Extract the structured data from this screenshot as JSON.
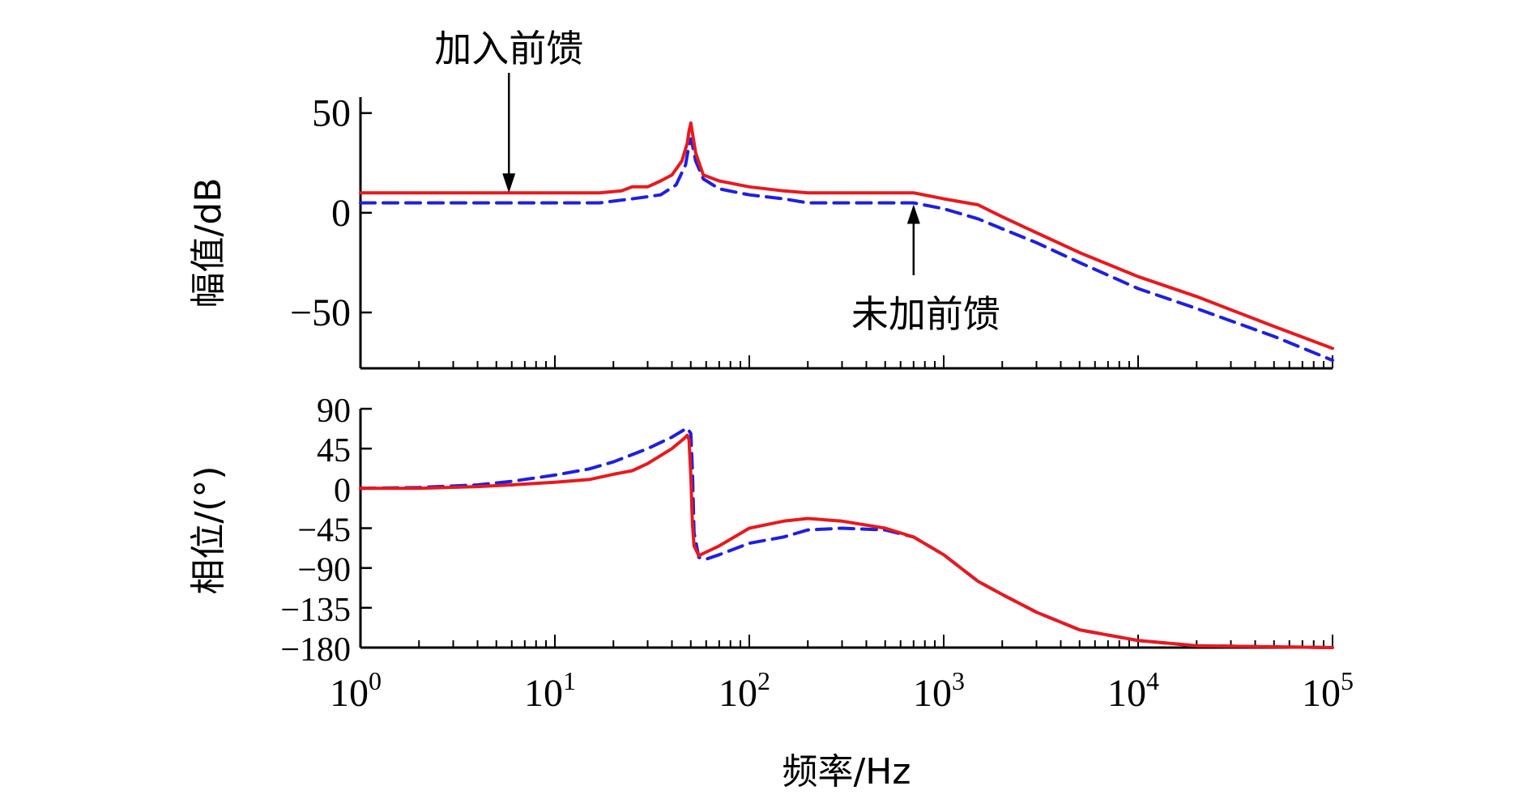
{
  "chart_data": [
    {
      "type": "line",
      "panel": "magnitude",
      "ylabel": "幅值/dB",
      "xscale": "log",
      "xlim": [
        1,
        100000
      ],
      "ylim": [
        -78,
        58
      ],
      "yticks": [
        "50",
        "0",
        "−50"
      ],
      "ytick_values": [
        50,
        0,
        -50
      ],
      "grid": false,
      "annotations": [
        {
          "text": "加入前馈",
          "target_series": "加入前馈",
          "x": 5.8,
          "y": 10,
          "arrow": "down"
        },
        {
          "text": "未加前馈",
          "target_series": "未加前馈",
          "x": 700,
          "y": 5,
          "arrow": "up"
        }
      ],
      "series": [
        {
          "name": "未加前馈",
          "color": "#1f1fe0",
          "style": "dashed",
          "points": [
            [
              1,
              5
            ],
            [
              10,
              5
            ],
            [
              17,
              5
            ],
            [
              25,
              7
            ],
            [
              35,
              9
            ],
            [
              42,
              14
            ],
            [
              47,
              24
            ],
            [
              49,
              34
            ],
            [
              50,
              37
            ],
            [
              51,
              34
            ],
            [
              53,
              26
            ],
            [
              58,
              17
            ],
            [
              70,
              12
            ],
            [
              100,
              9
            ],
            [
              150,
              7
            ],
            [
              200,
              5
            ],
            [
              300,
              5
            ],
            [
              500,
              5
            ],
            [
              700,
              5
            ],
            [
              1000,
              2
            ],
            [
              1500,
              -3
            ],
            [
              2000,
              -8
            ],
            [
              3000,
              -15
            ],
            [
              5000,
              -25
            ],
            [
              10000,
              -38
            ],
            [
              20000,
              -48
            ],
            [
              50000,
              -62
            ],
            [
              100000,
              -74
            ]
          ]
        },
        {
          "name": "加入前馈",
          "color": "#e8191e",
          "style": "solid",
          "points": [
            [
              1,
              10
            ],
            [
              10,
              10
            ],
            [
              17,
              10
            ],
            [
              22,
              11
            ],
            [
              25,
              13
            ],
            [
              30,
              13
            ],
            [
              35,
              16
            ],
            [
              40,
              19
            ],
            [
              45,
              26
            ],
            [
              48,
              35
            ],
            [
              49,
              41
            ],
            [
              50,
              45
            ],
            [
              51,
              40
            ],
            [
              53,
              30
            ],
            [
              58,
              19
            ],
            [
              70,
              16
            ],
            [
              100,
              13
            ],
            [
              150,
              11
            ],
            [
              200,
              10
            ],
            [
              300,
              10
            ],
            [
              500,
              10
            ],
            [
              700,
              10
            ],
            [
              1000,
              7
            ],
            [
              1500,
              4
            ],
            [
              2000,
              -2
            ],
            [
              3000,
              -10
            ],
            [
              5000,
              -20
            ],
            [
              10000,
              -32
            ],
            [
              20000,
              -42
            ],
            [
              50000,
              -57
            ],
            [
              100000,
              -68
            ]
          ]
        }
      ]
    },
    {
      "type": "line",
      "panel": "phase",
      "ylabel": "相位/(°)",
      "xlabel": "频率/Hz",
      "xscale": "log",
      "xlim": [
        1,
        100000
      ],
      "ylim": [
        -180,
        90
      ],
      "yticks": [
        "90",
        "45",
        "0",
        "−45",
        "−90",
        "−135",
        "−180"
      ],
      "ytick_values": [
        90,
        45,
        0,
        -45,
        -90,
        -135,
        -180
      ],
      "xticks": [
        {
          "base": "10",
          "exp": "0",
          "value": 1
        },
        {
          "base": "10",
          "exp": "1",
          "value": 10
        },
        {
          "base": "10",
          "exp": "2",
          "value": 100
        },
        {
          "base": "10",
          "exp": "3",
          "value": 1000
        },
        {
          "base": "10",
          "exp": "4",
          "value": 10000
        },
        {
          "base": "10",
          "exp": "5",
          "value": 100000
        }
      ],
      "grid": false,
      "series": [
        {
          "name": "未加前馈",
          "color": "#1f1fe0",
          "style": "dashed",
          "points": [
            [
              1,
              0
            ],
            [
              2,
              1
            ],
            [
              4,
              4
            ],
            [
              6,
              8
            ],
            [
              10,
              15
            ],
            [
              15,
              22
            ],
            [
              20,
              30
            ],
            [
              30,
              45
            ],
            [
              40,
              58
            ],
            [
              46,
              66
            ],
            [
              48,
              68
            ],
            [
              50,
              62
            ],
            [
              51,
              20
            ],
            [
              52,
              -50
            ],
            [
              55,
              -78
            ],
            [
              60,
              -80
            ],
            [
              70,
              -75
            ],
            [
              100,
              -62
            ],
            [
              150,
              -55
            ],
            [
              200,
              -47
            ],
            [
              300,
              -45
            ],
            [
              500,
              -47
            ],
            [
              700,
              -55
            ],
            [
              1000,
              -75
            ],
            [
              1500,
              -105
            ],
            [
              2000,
              -120
            ],
            [
              3000,
              -140
            ],
            [
              5000,
              -160
            ],
            [
              10000,
              -172
            ],
            [
              20000,
              -178
            ],
            [
              100000,
              -180
            ]
          ]
        },
        {
          "name": "加入前馈",
          "color": "#e8191e",
          "style": "solid",
          "points": [
            [
              1,
              0
            ],
            [
              2,
              0
            ],
            [
              4,
              2
            ],
            [
              6,
              4
            ],
            [
              10,
              7
            ],
            [
              15,
              10
            ],
            [
              20,
              16
            ],
            [
              25,
              20
            ],
            [
              30,
              28
            ],
            [
              40,
              45
            ],
            [
              46,
              56
            ],
            [
              48,
              60
            ],
            [
              49,
              55
            ],
            [
              50,
              15
            ],
            [
              51,
              -40
            ],
            [
              52,
              -65
            ],
            [
              55,
              -76
            ],
            [
              60,
              -72
            ],
            [
              70,
              -65
            ],
            [
              100,
              -45
            ],
            [
              150,
              -37
            ],
            [
              200,
              -34
            ],
            [
              300,
              -37
            ],
            [
              500,
              -45
            ],
            [
              700,
              -55
            ],
            [
              1000,
              -75
            ],
            [
              1500,
              -105
            ],
            [
              2000,
              -120
            ],
            [
              3000,
              -140
            ],
            [
              5000,
              -160
            ],
            [
              10000,
              -172
            ],
            [
              20000,
              -178
            ],
            [
              100000,
              -180
            ]
          ]
        }
      ]
    }
  ]
}
